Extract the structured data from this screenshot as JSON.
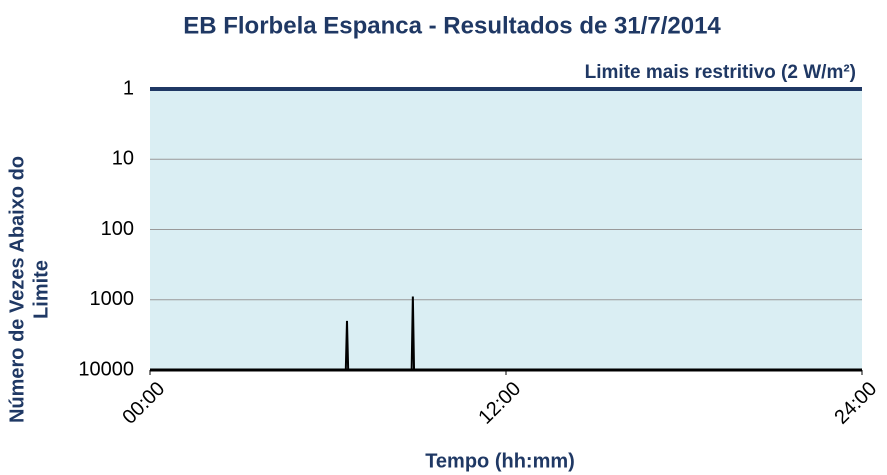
{
  "chart_data": {
    "type": "line",
    "title": "EB Florbela Espanca - Resultados de 31/7/2014",
    "xlabel": "Tempo (hh:mm)",
    "ylabel": [
      "Número de Vezes Abaixo do",
      "Limite"
    ],
    "annotation": "Limite mais restritivo (2 W/m²)",
    "limit_value": 1,
    "log_y": true,
    "grid": true,
    "plot_background": "#daeef3",
    "limit_color": "#1f3864",
    "xlim": [
      0,
      24
    ],
    "xticks": [
      {
        "value": 0,
        "label": "00:00"
      },
      {
        "value": 12,
        "label": "12:00"
      },
      {
        "value": 24,
        "label": "24:00"
      }
    ],
    "ylim": [
      10000,
      1
    ],
    "yticks": [
      1,
      10,
      100,
      1000,
      10000
    ],
    "series": [
      {
        "name": "Resultados",
        "color": "#000000",
        "x": [
          0,
          6.6,
          6.64,
          6.68,
          8.82,
          8.86,
          8.9,
          24
        ],
        "values": [
          10000,
          10000,
          2000,
          10000,
          10000,
          900,
          10000,
          10000
        ]
      }
    ]
  }
}
